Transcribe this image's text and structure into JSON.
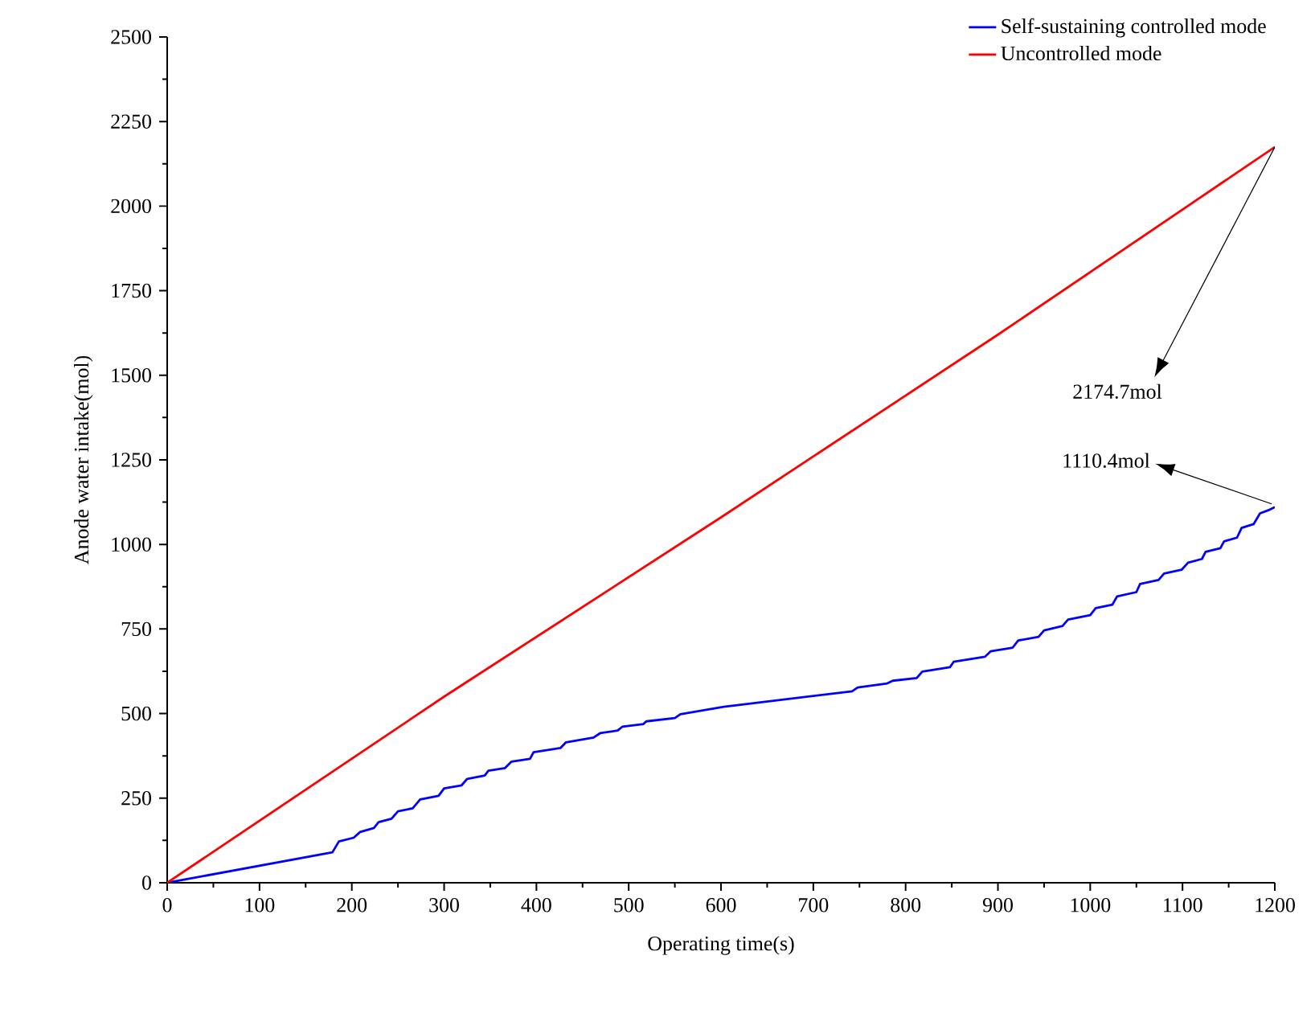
{
  "chart_data": {
    "type": "line",
    "xlabel": "Operating time(s)",
    "ylabel": "Anode water intake(mol)",
    "xlim": [
      0,
      1200
    ],
    "xticks": [
      0,
      100,
      200,
      300,
      400,
      500,
      600,
      700,
      800,
      900,
      1000,
      1100,
      1200
    ],
    "ylim": [
      0,
      2500
    ],
    "yticks": [
      0,
      250,
      500,
      750,
      1000,
      1250,
      1500,
      1750,
      2000,
      2250,
      2500
    ],
    "grid": false,
    "legend": "top right",
    "marker": "none",
    "line_style": "solid",
    "series": [
      {
        "name": "Self-sustaining controlled mode",
        "color": "#0000ff",
        "x": [
          0,
          179,
          186,
          202,
          209,
          224,
          229,
          243,
          250,
          266,
          274,
          294,
          300,
          319,
          325,
          344,
          348,
          366,
          373,
          393,
          397,
          426,
          432,
          462,
          469,
          488,
          493,
          516,
          519,
          550,
          556,
          603,
          742,
          748,
          780,
          786,
          812,
          818,
          848,
          852,
          886,
          892,
          916,
          922,
          944,
          950,
          970,
          976,
          1000,
          1006,
          1024,
          1029,
          1050,
          1054,
          1074,
          1080,
          1099,
          1106,
          1121,
          1125,
          1141,
          1145,
          1159,
          1164,
          1177,
          1184,
          1193,
          1200
        ],
        "values": [
          0,
          90,
          122,
          133,
          150,
          162,
          179,
          189,
          211,
          220,
          246,
          257,
          279,
          288,
          307,
          317,
          331,
          339,
          358,
          366,
          386,
          398,
          415,
          429,
          442,
          450,
          461,
          469,
          477,
          487,
          498,
          520,
          566,
          577,
          589,
          597,
          605,
          624,
          637,
          653,
          668,
          684,
          695,
          716,
          727,
          746,
          759,
          778,
          791,
          812,
          822,
          846,
          859,
          883,
          895,
          914,
          925,
          946,
          957,
          978,
          989,
          1009,
          1020,
          1049,
          1060,
          1092,
          1101,
          1110.4
        ]
      },
      {
        "name": "Uncontrolled mode",
        "color": "#ff0000",
        "x": [
          0,
          300,
          600,
          900,
          1200
        ],
        "values": [
          0,
          550,
          1080,
          1620,
          2174.7
        ]
      }
    ],
    "annotations": [
      {
        "text": "2174.7mol",
        "x": 1200,
        "y": 2174.7
      },
      {
        "text": "1110.4mol",
        "x": 1200,
        "y": 1110.4
      }
    ]
  }
}
